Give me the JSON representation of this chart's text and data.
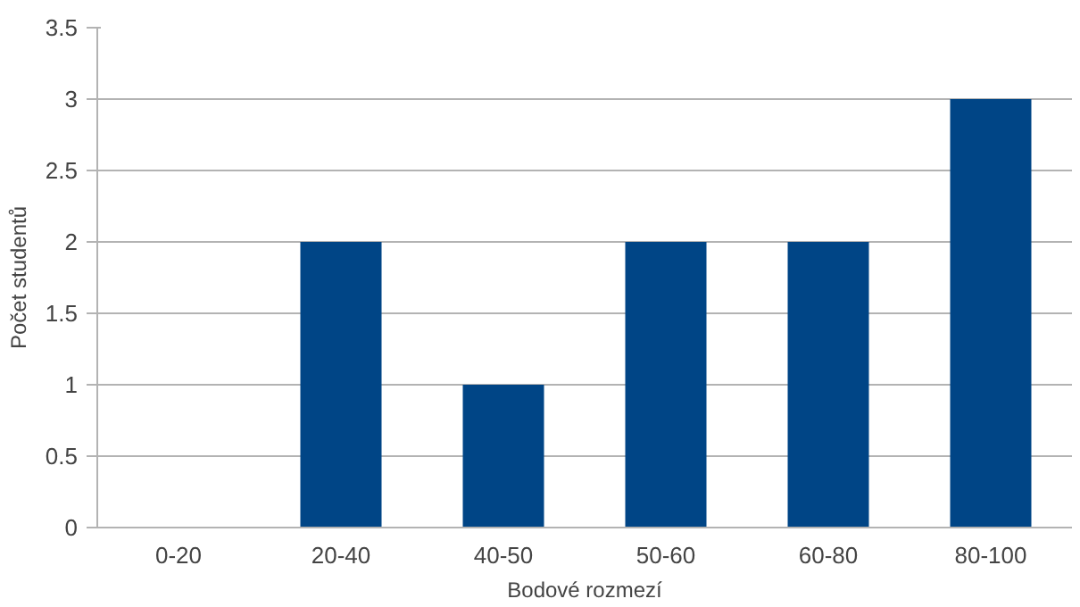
{
  "chart_data": {
    "type": "bar",
    "xlabel": "Bodové rozmezí",
    "ylabel": "Počet studentů",
    "categories": [
      "0-20",
      "20-40",
      "40-50",
      "50-60",
      "60-80",
      "80-100"
    ],
    "values": [
      0,
      2,
      1,
      2,
      2,
      3
    ],
    "color": "#004586",
    "ylim": [
      0,
      3.5
    ],
    "yticks": [
      0,
      0.5,
      1,
      1.5,
      2,
      2.5,
      3,
      3.5
    ],
    "grid": "y"
  }
}
